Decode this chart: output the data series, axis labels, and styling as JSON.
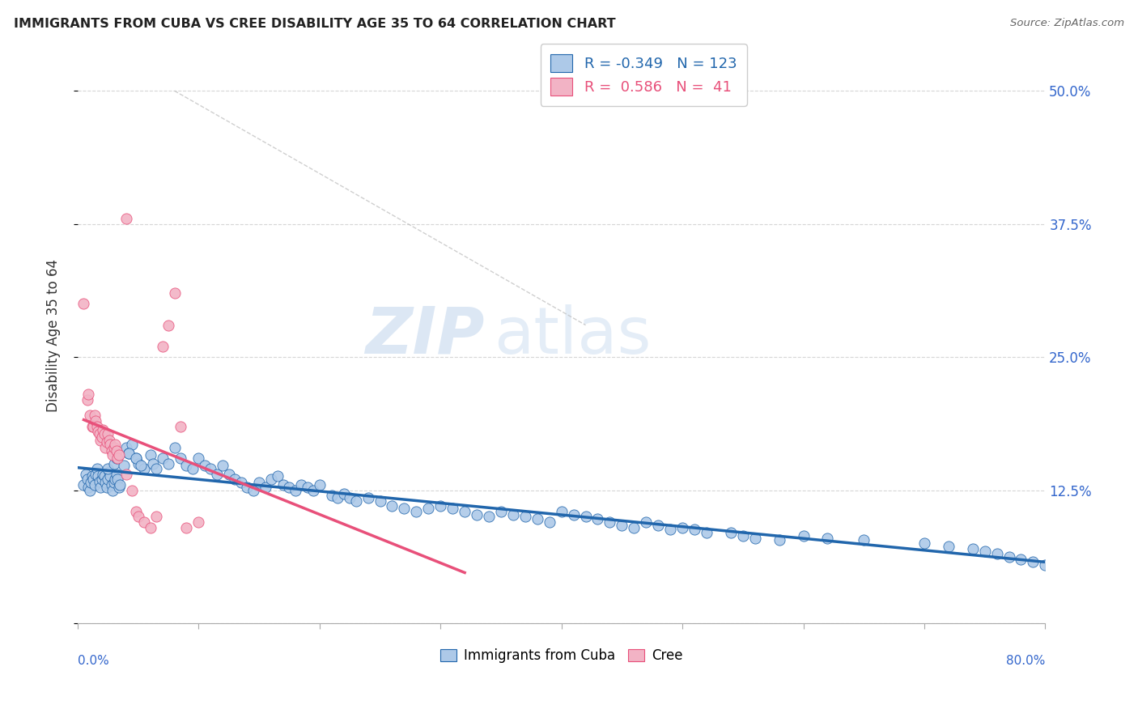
{
  "title": "IMMIGRANTS FROM CUBA VS CREE DISABILITY AGE 35 TO 64 CORRELATION CHART",
  "source": "Source: ZipAtlas.com",
  "ylabel": "Disability Age 35 to 64",
  "ytick_labels": [
    "",
    "12.5%",
    "25.0%",
    "37.5%",
    "50.0%"
  ],
  "ytick_values": [
    0.0,
    0.125,
    0.25,
    0.375,
    0.5
  ],
  "xlim": [
    0.0,
    0.8
  ],
  "ylim": [
    0.0,
    0.54
  ],
  "legend_label1": "Immigrants from Cuba",
  "legend_label2": "Cree",
  "R1": -0.349,
  "N1": 123,
  "R2": 0.586,
  "N2": 41,
  "color_blue": "#adc9e8",
  "color_pink": "#f2b3c5",
  "line_color_blue": "#2166ac",
  "line_color_pink": "#e8507a",
  "watermark_zip": "ZIP",
  "watermark_atlas": "atlas",
  "watermark_color": "#ccdcee",
  "blue_scatter_x": [
    0.005,
    0.007,
    0.008,
    0.009,
    0.01,
    0.011,
    0.012,
    0.013,
    0.014,
    0.015,
    0.016,
    0.017,
    0.018,
    0.019,
    0.02,
    0.021,
    0.022,
    0.023,
    0.024,
    0.025,
    0.026,
    0.027,
    0.028,
    0.029,
    0.03,
    0.031,
    0.032,
    0.033,
    0.034,
    0.035,
    0.04,
    0.042,
    0.045,
    0.048,
    0.05,
    0.055,
    0.06,
    0.062,
    0.065,
    0.07,
    0.075,
    0.08,
    0.085,
    0.09,
    0.095,
    0.1,
    0.105,
    0.11,
    0.115,
    0.12,
    0.125,
    0.13,
    0.135,
    0.14,
    0.145,
    0.15,
    0.155,
    0.16,
    0.165,
    0.17,
    0.175,
    0.18,
    0.185,
    0.19,
    0.195,
    0.2,
    0.21,
    0.215,
    0.22,
    0.225,
    0.23,
    0.24,
    0.25,
    0.26,
    0.27,
    0.28,
    0.29,
    0.3,
    0.31,
    0.32,
    0.33,
    0.34,
    0.35,
    0.36,
    0.37,
    0.38,
    0.39,
    0.4,
    0.41,
    0.42,
    0.43,
    0.44,
    0.45,
    0.46,
    0.47,
    0.48,
    0.49,
    0.5,
    0.51,
    0.52,
    0.54,
    0.55,
    0.56,
    0.58,
    0.6,
    0.62,
    0.65,
    0.7,
    0.72,
    0.74,
    0.75,
    0.76,
    0.77,
    0.78,
    0.79,
    0.8,
    0.025,
    0.03,
    0.032,
    0.038,
    0.042,
    0.048,
    0.052
  ],
  "blue_scatter_y": [
    0.13,
    0.14,
    0.135,
    0.128,
    0.125,
    0.132,
    0.138,
    0.135,
    0.13,
    0.14,
    0.145,
    0.138,
    0.133,
    0.128,
    0.135,
    0.14,
    0.138,
    0.132,
    0.128,
    0.135,
    0.142,
    0.138,
    0.13,
    0.125,
    0.132,
    0.135,
    0.14,
    0.135,
    0.128,
    0.13,
    0.165,
    0.16,
    0.168,
    0.155,
    0.15,
    0.145,
    0.158,
    0.15,
    0.145,
    0.155,
    0.15,
    0.165,
    0.155,
    0.148,
    0.145,
    0.155,
    0.148,
    0.145,
    0.14,
    0.148,
    0.14,
    0.135,
    0.132,
    0.128,
    0.125,
    0.132,
    0.128,
    0.135,
    0.138,
    0.13,
    0.128,
    0.125,
    0.13,
    0.128,
    0.125,
    0.13,
    0.12,
    0.118,
    0.122,
    0.118,
    0.115,
    0.118,
    0.115,
    0.11,
    0.108,
    0.105,
    0.108,
    0.11,
    0.108,
    0.105,
    0.102,
    0.1,
    0.105,
    0.102,
    0.1,
    0.098,
    0.095,
    0.105,
    0.102,
    0.1,
    0.098,
    0.095,
    0.092,
    0.09,
    0.095,
    0.092,
    0.088,
    0.09,
    0.088,
    0.085,
    0.085,
    0.082,
    0.08,
    0.078,
    0.082,
    0.08,
    0.078,
    0.075,
    0.072,
    0.07,
    0.068,
    0.065,
    0.062,
    0.06,
    0.058,
    0.055,
    0.145,
    0.15,
    0.155,
    0.148,
    0.16,
    0.155,
    0.148
  ],
  "pink_scatter_x": [
    0.005,
    0.008,
    0.009,
    0.01,
    0.012,
    0.013,
    0.014,
    0.015,
    0.016,
    0.017,
    0.018,
    0.019,
    0.02,
    0.021,
    0.022,
    0.023,
    0.024,
    0.025,
    0.026,
    0.027,
    0.028,
    0.029,
    0.03,
    0.031,
    0.032,
    0.033,
    0.034,
    0.04,
    0.045,
    0.048,
    0.05,
    0.055,
    0.06,
    0.065,
    0.07,
    0.075,
    0.08,
    0.085,
    0.09,
    0.1,
    0.04
  ],
  "pink_scatter_y": [
    0.3,
    0.21,
    0.215,
    0.195,
    0.185,
    0.185,
    0.195,
    0.19,
    0.185,
    0.18,
    0.178,
    0.172,
    0.175,
    0.182,
    0.178,
    0.165,
    0.17,
    0.178,
    0.172,
    0.168,
    0.162,
    0.158,
    0.165,
    0.168,
    0.162,
    0.155,
    0.158,
    0.14,
    0.125,
    0.105,
    0.1,
    0.095,
    0.09,
    0.1,
    0.26,
    0.28,
    0.31,
    0.185,
    0.09,
    0.095,
    0.38
  ],
  "pink_line_x0": 0.005,
  "pink_line_x1": 0.32,
  "blue_line_x0": 0.0,
  "blue_line_x1": 0.8
}
